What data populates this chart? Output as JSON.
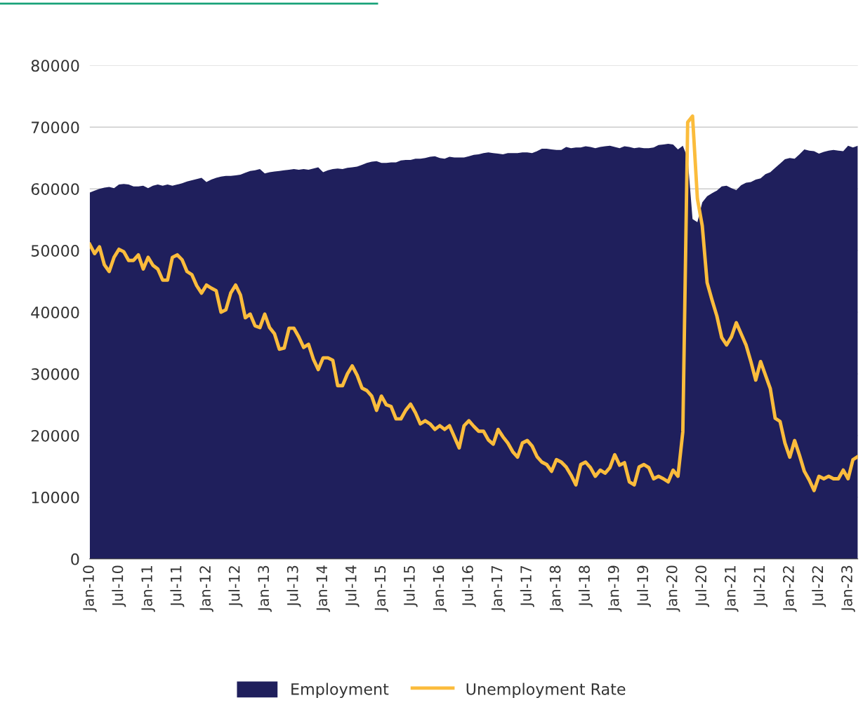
{
  "chart_data": {
    "type": "area",
    "categories": [
      "Jan-10",
      null,
      null,
      null,
      null,
      null,
      "Jul-10",
      null,
      null,
      null,
      null,
      null,
      "Jan-11",
      null,
      null,
      null,
      null,
      null,
      "Jul-11",
      null,
      null,
      null,
      null,
      null,
      "Jan-12",
      null,
      null,
      null,
      null,
      null,
      "Jul-12",
      null,
      null,
      null,
      null,
      null,
      "Jan-13",
      null,
      null,
      null,
      null,
      null,
      "Jul-13",
      null,
      null,
      null,
      null,
      null,
      "Jan-14",
      null,
      null,
      null,
      null,
      null,
      "Jul-14",
      null,
      null,
      null,
      null,
      null,
      "Jan-15",
      null,
      null,
      null,
      null,
      null,
      "Jul-15",
      null,
      null,
      null,
      null,
      null,
      "Jan-16",
      null,
      null,
      null,
      null,
      null,
      "Jul-16",
      null,
      null,
      null,
      null,
      null,
      "Jan-17",
      null,
      null,
      null,
      null,
      null,
      "Jul-17",
      null,
      null,
      null,
      null,
      null,
      "Jan-18",
      null,
      null,
      null,
      null,
      null,
      "Jul-18",
      null,
      null,
      null,
      null,
      null,
      "Jan-19",
      null,
      null,
      null,
      null,
      null,
      "Jul-19",
      null,
      null,
      null,
      null,
      null,
      "Jan-20",
      null,
      null,
      null,
      null,
      null,
      "Jul-20",
      null,
      null,
      null,
      null,
      null,
      "Jan-21",
      null,
      null,
      null,
      null,
      null,
      "Jul-21",
      null,
      null,
      null,
      null,
      null,
      "Jan-22",
      null,
      null,
      null,
      null,
      null,
      "Jul-22",
      null,
      null,
      null,
      null,
      null,
      "Jan-23",
      null,
      null
    ],
    "series": [
      {
        "name": "Employment",
        "color": "#1f1f5c",
        "values": [
          59400,
          59700,
          60000,
          60200,
          60300,
          60100,
          60700,
          60800,
          60700,
          60400,
          60400,
          60500,
          60100,
          60500,
          60700,
          60500,
          60700,
          60500,
          60700,
          60900,
          61200,
          61400,
          61600,
          61800,
          61100,
          61500,
          61800,
          62000,
          62100,
          62100,
          62200,
          62300,
          62600,
          62900,
          63000,
          63200,
          62500,
          62700,
          62800,
          62900,
          63000,
          63100,
          63200,
          63100,
          63200,
          63100,
          63300,
          63500,
          62700,
          63000,
          63200,
          63300,
          63200,
          63400,
          63500,
          63600,
          63900,
          64200,
          64400,
          64500,
          64200,
          64200,
          64300,
          64300,
          64600,
          64700,
          64700,
          64900,
          64900,
          65000,
          65200,
          65300,
          65000,
          64900,
          65200,
          65100,
          65100,
          65100,
          65300,
          65500,
          65600,
          65800,
          65900,
          65800,
          65700,
          65600,
          65800,
          65800,
          65800,
          65900,
          65900,
          65800,
          66100,
          66500,
          66500,
          66400,
          66300,
          66300,
          66800,
          66600,
          66700,
          66700,
          66900,
          66800,
          66600,
          66800,
          66900,
          67000,
          66800,
          66600,
          66900,
          66800,
          66600,
          66700,
          66600,
          66600,
          66700,
          67100,
          67200,
          67300,
          67200,
          66400,
          67000,
          65000,
          55100,
          54600,
          57800,
          58800,
          59300,
          59700,
          60400,
          60500,
          60100,
          59800,
          60600,
          61000,
          61100,
          61500,
          61700,
          62400,
          62700,
          63400,
          64100,
          64800,
          65000,
          64900,
          65600,
          66400,
          66200,
          66100,
          65700,
          66000,
          66200,
          66300,
          66200,
          66100,
          67000,
          66700,
          67000
        ]
      },
      {
        "name": "Unemployment Rate",
        "type": "line",
        "color": "#fbbc3c",
        "values": [
          51000,
          49500,
          50600,
          47700,
          46600,
          48900,
          50200,
          49800,
          48400,
          48400,
          49300,
          47000,
          48900,
          47600,
          47000,
          45200,
          45200,
          48900,
          49300,
          48500,
          46600,
          46100,
          44300,
          43100,
          44400,
          43900,
          43500,
          40000,
          40400,
          43100,
          44400,
          42800,
          39100,
          39700,
          37800,
          37500,
          39700,
          37500,
          36500,
          34000,
          34200,
          37400,
          37400,
          36000,
          34300,
          34800,
          32400,
          30700,
          32600,
          32600,
          32200,
          28100,
          28100,
          30000,
          31300,
          29800,
          27700,
          27300,
          26400,
          24100,
          26400,
          25000,
          24700,
          22700,
          22700,
          24100,
          25100,
          23700,
          21900,
          22400,
          21900,
          21000,
          21600,
          21000,
          21600,
          19800,
          18000,
          21600,
          22400,
          21500,
          20700,
          20700,
          19300,
          18600,
          21000,
          19800,
          18800,
          17400,
          16500,
          18800,
          19200,
          18300,
          16600,
          15700,
          15300,
          14200,
          16100,
          15700,
          14900,
          13600,
          12000,
          15300,
          15700,
          14800,
          13400,
          14400,
          13900,
          14800,
          16900,
          15200,
          15600,
          12500,
          12000,
          14900,
          15300,
          14800,
          13000,
          13400,
          13000,
          12500,
          14400,
          13400,
          20600,
          70800,
          71800,
          58400,
          54000,
          44800,
          42000,
          39400,
          35900,
          34700,
          36000,
          38300,
          36500,
          34700,
          32000,
          29000,
          32000,
          29800,
          27600,
          22800,
          22300,
          18800,
          16500,
          19200,
          16800,
          14200,
          12800,
          11100,
          13400,
          13000,
          13400,
          13000,
          13000,
          14400,
          13000,
          16100,
          16600
        ]
      }
    ],
    "ylim": [
      0,
      80000
    ],
    "yticks": [
      0,
      10000,
      20000,
      30000,
      40000,
      50000,
      60000,
      70000,
      80000
    ],
    "grid": "y",
    "legend": "bottom",
    "line_style": "solid",
    "marker": "none"
  }
}
